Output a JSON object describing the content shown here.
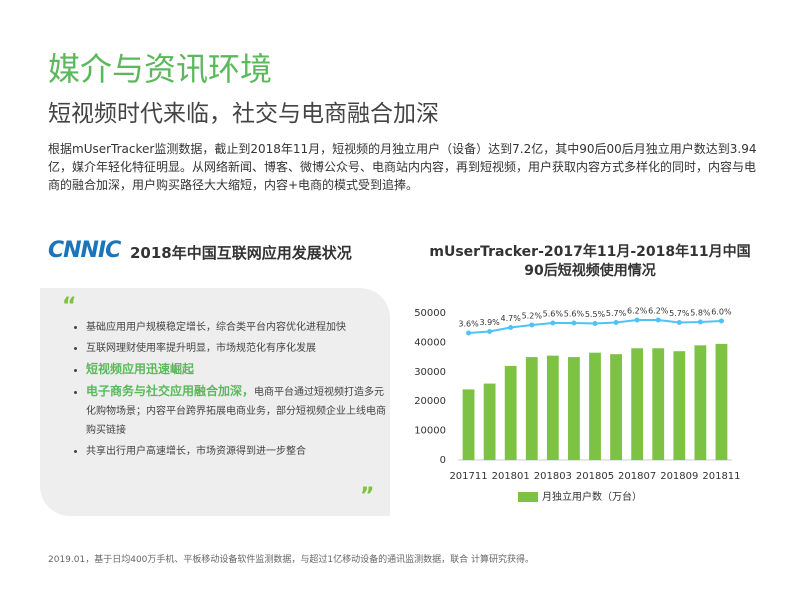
{
  "header": {
    "title": "媒介与资讯环境",
    "subtitle": "短视频时代来临，社交与电商融合加深",
    "paragraph": "根据mUserTracker监测数据，截止到2018年11月，短视频的月独立用户（设备）达到7.2亿，其中90后00后月独立用户数达到3.94亿，媒介年轻化特征明显。从网络新闻、博客、微博公众号、电商站内内容，再到短视频，用户获取内容方式多样化的同时，内容与电商的融合加深，用户购买路径大大缩短，内容+电商的模式受到追捧。"
  },
  "left_panel": {
    "logo": "CNNIC",
    "title": "2018年中国互联网应用发展状况",
    "bullets": [
      {
        "text": "基础应用用户规模稳定增长，综合类平台内容优化进程加快"
      },
      {
        "text": "互联网理财使用率提升明显，市场规范化有序化发展"
      },
      {
        "bold": "短视频应用迅速崛起"
      },
      {
        "bold": "电子商务与社交应用融合加深，",
        "text": "电商平台通过短视频打造多元化购物场景；内容平台跨界拓展电商业务，部分短视频企业上线电商购买链接"
      },
      {
        "text": "共享出行用户高速增长，市场资源得到进一步整合"
      }
    ]
  },
  "chart_data": {
    "type": "bar",
    "title": "mUserTracker-2017年11月-2018年11月中国90后短视频使用情况",
    "categories": [
      "201711",
      null,
      "201801",
      null,
      "201803",
      null,
      "201805",
      null,
      "201807",
      null,
      "201809",
      null,
      "201811"
    ],
    "series": [
      {
        "name": "月独立用户数（万台）",
        "color": "#7dc242",
        "values": [
          24000,
          26000,
          32000,
          35000,
          35500,
          35000,
          36500,
          36000,
          38000,
          38000,
          37000,
          39000,
          39500
        ]
      },
      {
        "type": "line",
        "color": "#4fc3f7",
        "values": [
          3.6,
          3.9,
          4.7,
          5.2,
          5.6,
          5.6,
          5.5,
          5.7,
          6.2,
          6.2,
          5.7,
          5.8,
          6.0
        ],
        "value_labels": [
          "3.6%",
          "3.9%",
          "4.7%",
          "5.2%",
          "5.6%",
          "5.6%",
          "5.5%",
          "5.7%",
          "6.2%",
          "6.2%",
          "5.7%",
          "5.8%",
          "6.0%"
        ]
      }
    ],
    "ylim": [
      0,
      50000
    ],
    "yticks": [
      0,
      10000,
      20000,
      30000,
      40000,
      50000
    ]
  },
  "footer": "2019.01，基于日均400万手机、平板移动设备软件监测数据，与超过1亿移动设备的通讯监测数据，联合 计算研究获得。"
}
